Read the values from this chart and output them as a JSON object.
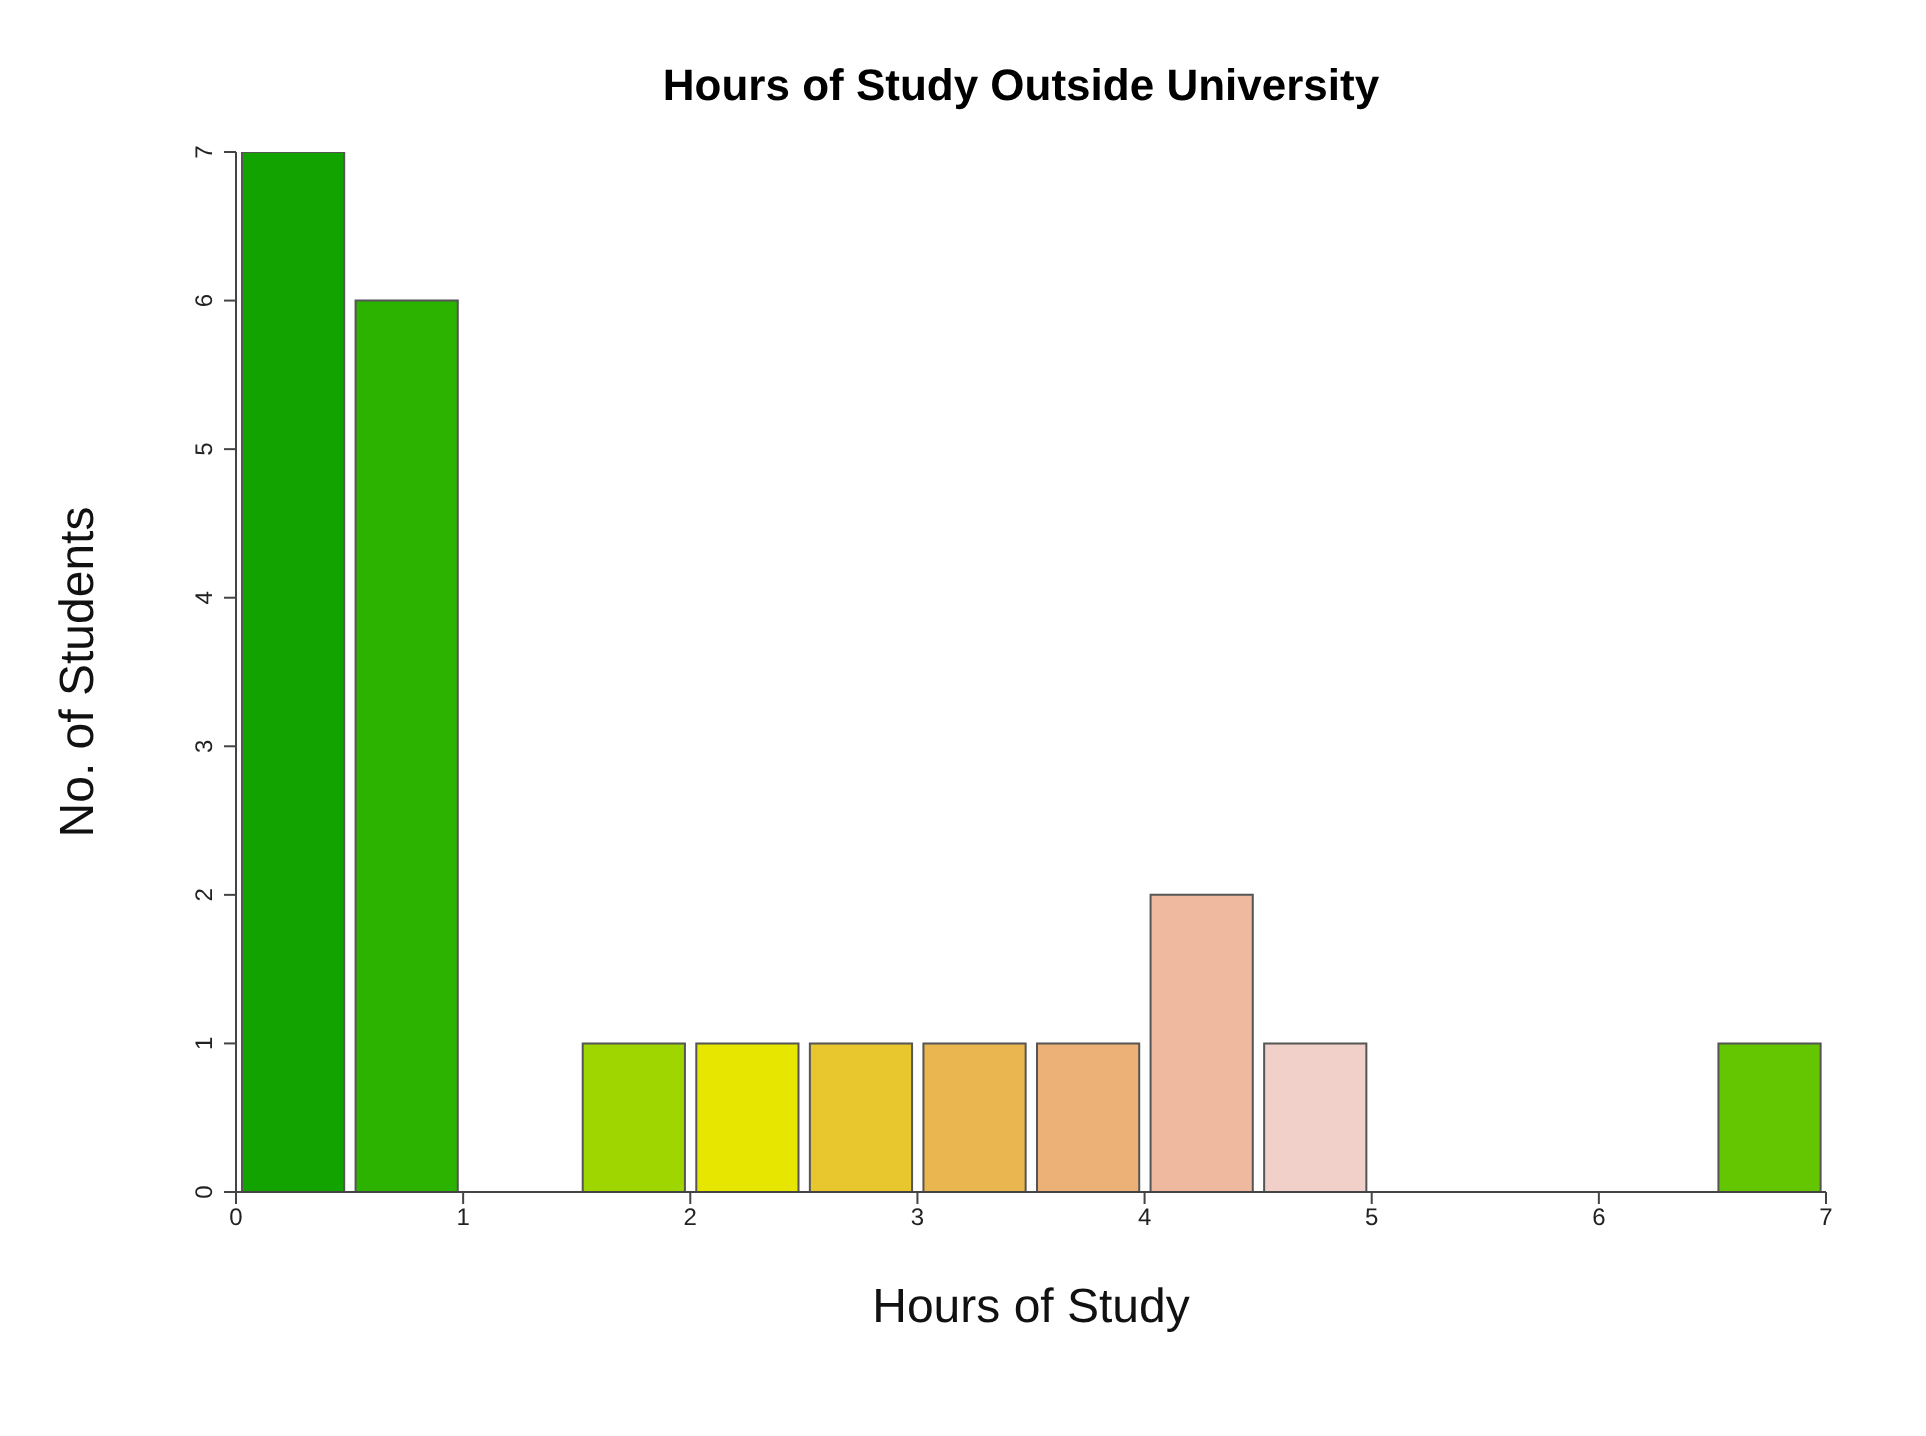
{
  "chart_data": {
    "type": "histogram",
    "title": "Hours of Study Outside University",
    "xlabel": "Hours of Study",
    "ylabel": "No. of Students",
    "bins": [
      0,
      0.5,
      1,
      1.5,
      2,
      2.5,
      3,
      3.5,
      4,
      4.5,
      5,
      5.5,
      6,
      6.5,
      7
    ],
    "values": [
      7,
      6,
      0,
      1,
      1,
      1,
      1,
      1,
      2,
      1,
      0,
      0,
      0,
      1
    ],
    "colors": [
      "#12a300",
      "#2cb300",
      "#4cbf00",
      "#a0d600",
      "#e6e600",
      "#e8c72e",
      "#eab64f",
      "#ecb176",
      "#eeb99f",
      "#f0d0c8",
      "#f2dcd6",
      "#f2e6e2",
      "#f2eeec",
      "#63c600"
    ],
    "xlim": [
      0,
      7
    ],
    "xticks": [
      0,
      1,
      2,
      3,
      4,
      5,
      6,
      7
    ],
    "ylim": [
      0,
      7
    ],
    "yticks": [
      0,
      1,
      2,
      3,
      4,
      5,
      6,
      7
    ],
    "grid": false,
    "legend": false
  }
}
